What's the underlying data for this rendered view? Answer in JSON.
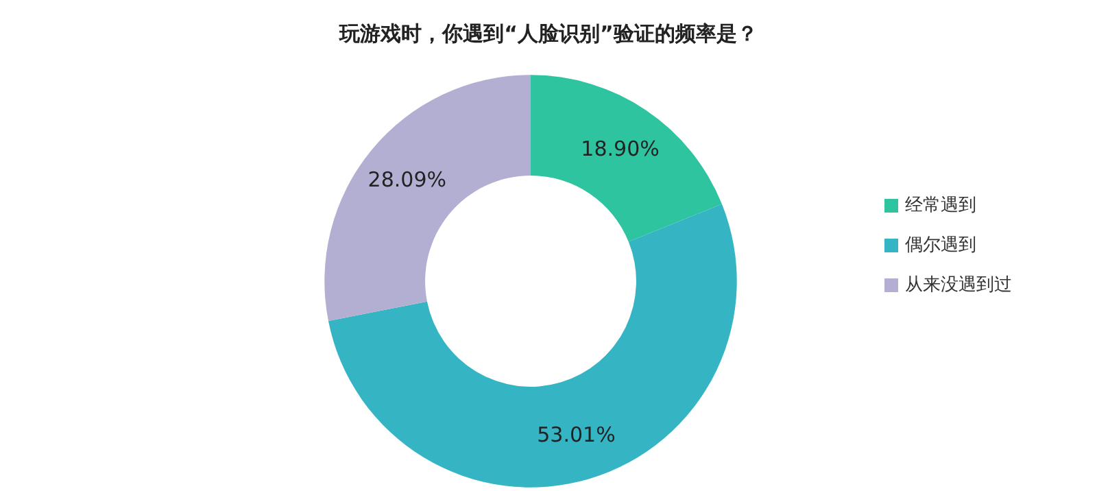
{
  "chart_data": {
    "type": "donut",
    "title": "玩游戏时，你遇到“人脸识别”验证的频率是？",
    "categories": [
      "经常遇到",
      "偶尔遇到",
      "从来没遇到过"
    ],
    "values": [
      18.9,
      53.01,
      28.09
    ],
    "value_labels": [
      "18.90%",
      "53.01%",
      "28.09%"
    ],
    "colors": [
      "#2ec4a0",
      "#35b5c3",
      "#b3afd3"
    ],
    "legend": "right"
  }
}
